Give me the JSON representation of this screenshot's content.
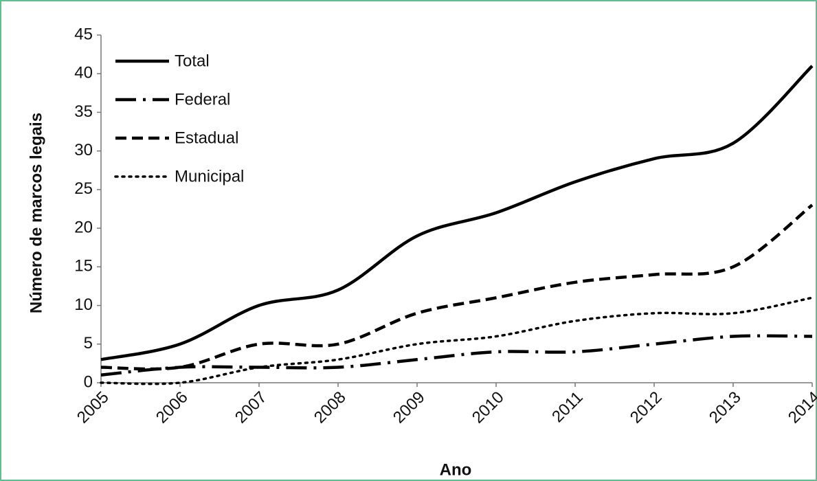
{
  "chart_data": {
    "type": "line",
    "x_label": "Ano",
    "y_label": "Número de marcos legais",
    "x": [
      2005,
      2006,
      2007,
      2008,
      2009,
      2010,
      2011,
      2012,
      2013,
      2014
    ],
    "xlim": [
      2005,
      2014
    ],
    "xticks": [
      2005,
      2006,
      2007,
      2008,
      2009,
      2010,
      2011,
      2012,
      2013,
      2014
    ],
    "ylim": [
      0,
      45
    ],
    "yticks": [
      0,
      5,
      10,
      15,
      20,
      25,
      30,
      35,
      40,
      45
    ],
    "legend": "upper left",
    "series": [
      {
        "name": "Total",
        "color": "#000000",
        "dash": "solid",
        "values": [
          3,
          5,
          10,
          12,
          19,
          22,
          26,
          29,
          31,
          41
        ]
      },
      {
        "name": "Federal",
        "color": "#000000",
        "dash": "dashdot",
        "values": [
          1,
          2,
          2,
          2,
          3,
          4,
          4,
          5,
          6,
          6
        ]
      },
      {
        "name": "Estadual",
        "color": "#000000",
        "dash": "dashed",
        "values": [
          2,
          2,
          5,
          5,
          9,
          11,
          13,
          14,
          15,
          23
        ]
      },
      {
        "name": "Municipal",
        "color": "#000000",
        "dash": "dotted",
        "values": [
          0,
          0,
          2,
          3,
          5,
          6,
          8,
          9,
          9,
          11
        ]
      }
    ]
  }
}
